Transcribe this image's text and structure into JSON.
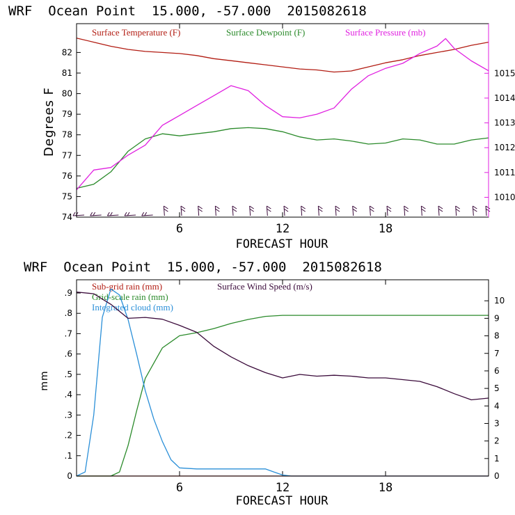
{
  "colors": {
    "temperature": "#b21c12",
    "dewpoint": "#2a8a2a",
    "pressure": "#e020e0",
    "subgrid": "#b21c12",
    "gridscale": "#2a8a2a",
    "cloud": "#2a8fd8",
    "wind": "#3a0a3a",
    "barbs": "#3a0a3a"
  },
  "chart_data": [
    {
      "type": "line",
      "header": "WRF  Ocean Point  15.000, -57.000  2015082618",
      "xlabel": "FORECAST HOUR",
      "ylabel": "Degrees F",
      "xlim": [
        0,
        24
      ],
      "xticks": [
        6,
        12,
        18
      ],
      "ylim_left": [
        74,
        83.4
      ],
      "yticks_left": [
        74,
        75,
        76,
        77,
        78,
        79,
        80,
        81,
        82
      ],
      "ylim_right": [
        1009.2,
        1017.0
      ],
      "yticks_right": [
        1010,
        1011,
        1012,
        1013,
        1014,
        1015
      ],
      "wind_barbs": "one wind barb per forecast hour along the bottom axis",
      "series": [
        {
          "name": "Surface Temperature (F)",
          "axis": "left",
          "x": [
            0,
            1,
            2,
            3,
            4,
            5,
            6,
            7,
            8,
            9,
            10,
            11,
            12,
            13,
            14,
            15,
            16,
            17,
            18,
            19,
            20,
            21,
            22,
            23,
            24
          ],
          "y": [
            82.7,
            82.5,
            82.3,
            82.15,
            82.05,
            82.0,
            81.95,
            81.85,
            81.7,
            81.6,
            81.5,
            81.4,
            81.3,
            81.2,
            81.15,
            81.05,
            81.1,
            81.3,
            81.5,
            81.65,
            81.85,
            82.0,
            82.15,
            82.35,
            82.5
          ]
        },
        {
          "name": "Surface Dewpoint (F)",
          "axis": "left",
          "x": [
            0,
            1,
            2,
            3,
            4,
            5,
            6,
            7,
            8,
            9,
            10,
            11,
            12,
            13,
            14,
            15,
            16,
            17,
            18,
            19,
            20,
            21,
            22,
            23,
            24
          ],
          "y": [
            75.4,
            75.6,
            76.2,
            77.2,
            77.8,
            78.05,
            77.95,
            78.05,
            78.15,
            78.3,
            78.35,
            78.3,
            78.15,
            77.9,
            77.75,
            77.8,
            77.7,
            77.55,
            77.6,
            77.8,
            77.75,
            77.55,
            77.55,
            77.75,
            77.85
          ]
        },
        {
          "name": "Surface Pressure (mb)",
          "axis": "right",
          "x": [
            0,
            1,
            2,
            3,
            4,
            5,
            5.5,
            6,
            7,
            8,
            9,
            10,
            11,
            12,
            13,
            14,
            15,
            16,
            17,
            18,
            19,
            20,
            21,
            21.5,
            22,
            23,
            24
          ],
          "y": [
            1010.3,
            1011.1,
            1011.2,
            1011.7,
            1012.1,
            1012.9,
            1013.1,
            1013.3,
            1013.7,
            1014.1,
            1014.5,
            1014.3,
            1013.7,
            1013.25,
            1013.2,
            1013.35,
            1013.6,
            1014.35,
            1014.9,
            1015.2,
            1015.4,
            1015.8,
            1016.1,
            1016.4,
            1016.0,
            1015.5,
            1015.1
          ]
        }
      ]
    },
    {
      "type": "line",
      "header": "WRF  Ocean Point  15.000, -57.000  2015082618",
      "xlabel": "FORECAST HOUR",
      "ylabel": "mm",
      "xlim": [
        0,
        24
      ],
      "xticks": [
        6,
        12,
        18
      ],
      "ylim_left": [
        0,
        0.965
      ],
      "yticks_left": [
        0,
        0.1,
        0.2,
        0.3,
        0.4,
        0.5,
        0.6,
        0.7,
        0.8,
        0.9
      ],
      "yticks_left_labels": [
        "0",
        ".1",
        ".2",
        ".3",
        ".4",
        ".5",
        ".6",
        ".7",
        ".8",
        ".9"
      ],
      "ylim_right": [
        0,
        11.2
      ],
      "yticks_right": [
        0,
        1,
        2,
        3,
        4,
        5,
        6,
        7,
        8,
        9,
        10
      ],
      "series": [
        {
          "name": "Sub-grid rain (mm)",
          "axis": "left",
          "x": [
            0,
            24
          ],
          "y": [
            0,
            0
          ]
        },
        {
          "name": "Grid-scale rain (mm)",
          "axis": "left",
          "x": [
            0,
            2,
            2.5,
            3,
            3.5,
            4,
            5,
            6,
            7,
            8,
            9,
            10,
            11,
            12,
            13,
            24
          ],
          "y": [
            0,
            0,
            0.02,
            0.15,
            0.32,
            0.48,
            0.63,
            0.69,
            0.705,
            0.725,
            0.75,
            0.77,
            0.785,
            0.79,
            0.79,
            0.79
          ]
        },
        {
          "name": "Integrated cloud (mm)",
          "axis": "left",
          "x": [
            0,
            0.5,
            1,
            1.5,
            2,
            2.5,
            3,
            3.5,
            4,
            4.5,
            5,
            5.5,
            6,
            7,
            8,
            9,
            10,
            11,
            11.5,
            12,
            12.5,
            24
          ],
          "y": [
            0,
            0.02,
            0.3,
            0.78,
            0.92,
            0.89,
            0.77,
            0.6,
            0.42,
            0.28,
            0.17,
            0.08,
            0.04,
            0.035,
            0.035,
            0.035,
            0.035,
            0.035,
            0.02,
            0.005,
            0,
            0
          ]
        },
        {
          "name": "Surface Wind Speed (m/s)",
          "axis": "right",
          "x": [
            0,
            1,
            2,
            3,
            4,
            5,
            6,
            7,
            8,
            9,
            10,
            11,
            12,
            13,
            14,
            15,
            16,
            17,
            18,
            19,
            20,
            21,
            22,
            23,
            24
          ],
          "y": [
            10.5,
            10.4,
            9.8,
            9.0,
            9.05,
            8.95,
            8.6,
            8.2,
            7.4,
            6.8,
            6.3,
            5.9,
            5.6,
            5.8,
            5.7,
            5.75,
            5.7,
            5.6,
            5.6,
            5.5,
            5.4,
            5.1,
            4.7,
            4.35,
            4.45
          ]
        }
      ]
    }
  ]
}
